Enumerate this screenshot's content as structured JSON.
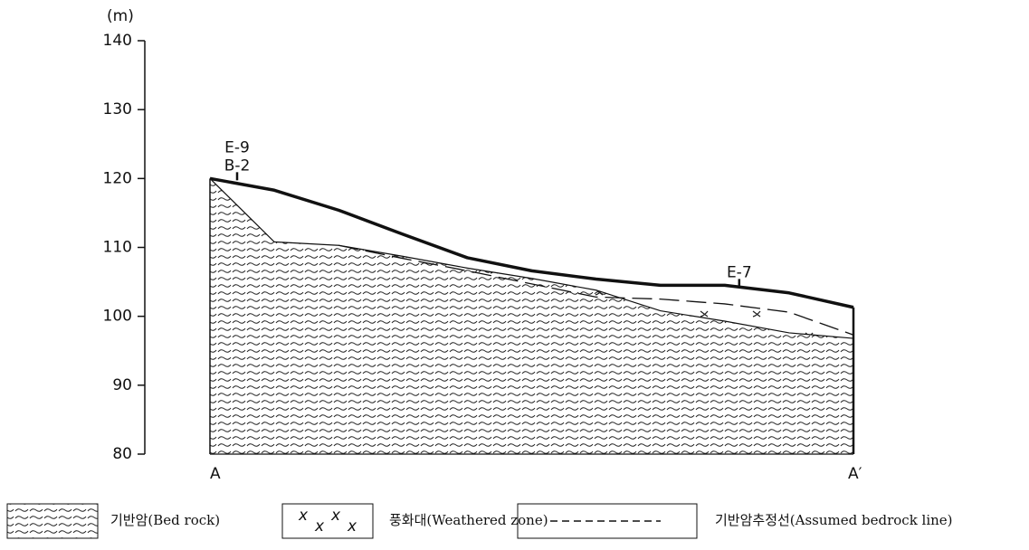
{
  "chart_data": {
    "type": "profile",
    "y_label": "(m)",
    "ylim": [
      80,
      140
    ],
    "yticks": [
      80,
      90,
      100,
      110,
      120,
      130,
      140
    ],
    "categories": [
      "A",
      null,
      null,
      null,
      null,
      null,
      null,
      null,
      null,
      null,
      "A′"
    ],
    "series": [
      {
        "color": "#111",
        "values": [
          120,
          118.3,
          115.4,
          111.9,
          108.5,
          106.6,
          105.4,
          104.5,
          104.5,
          103.4,
          101.3
        ]
      },
      {
        "color": "#111",
        "values": [
          120,
          110.8,
          110.3,
          108.7,
          107,
          105.5,
          103.8,
          100.8,
          99.3,
          97.6,
          96.8
        ]
      },
      {
        "name": "기반암추정선(Assumed bedrock line)",
        "color": "#111",
        "values": [
          null,
          null,
          110.3,
          108.4,
          106.6,
          104.7,
          102.8,
          102.5,
          101.8,
          100.6,
          97.3
        ]
      }
    ],
    "annotations": [
      {
        "text": "E-9",
        "category": 0
      },
      {
        "text": "B-2",
        "category": 0
      },
      {
        "text": "E-7",
        "category": 8
      }
    ],
    "legend": [
      "기반암(Bed rock)",
      "풍화대(Weathered zone)"
    ]
  }
}
